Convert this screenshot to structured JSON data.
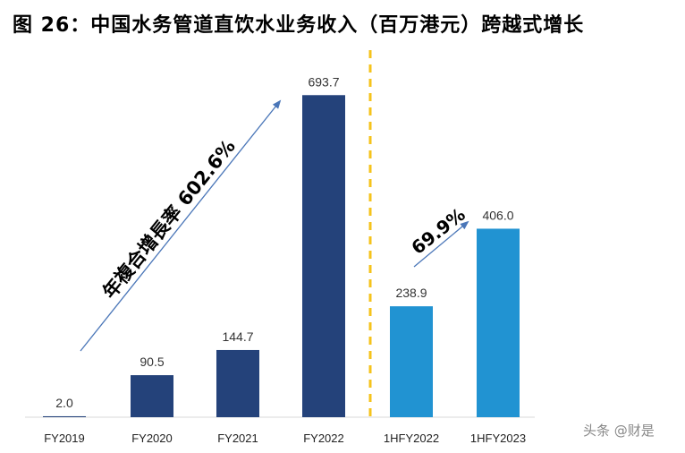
{
  "title": "图 26：中国水务管道直饮水业务收入（百万港元）跨越式增长",
  "chart_data": {
    "type": "bar",
    "categories": [
      "FY2019",
      "FY2020",
      "FY2021",
      "FY2022",
      "1HFY2022",
      "1HFY2023"
    ],
    "values": [
      2.0,
      90.5,
      144.7,
      693.7,
      238.9,
      406.0
    ],
    "value_labels": [
      "2.0",
      "90.5",
      "144.7",
      "693.7",
      "238.9",
      "406.0"
    ],
    "colors": [
      "#24427a",
      "#24427a",
      "#24427a",
      "#24427a",
      "#2193d2",
      "#2193d2"
    ],
    "divider_color": "#f5c31c",
    "annotations": [
      {
        "text": "年複合增長率 602.6%"
      },
      {
        "text": "69.9%"
      }
    ],
    "ylim": [
      0,
      700
    ],
    "grid": false
  },
  "watermark": "头条 @财是"
}
